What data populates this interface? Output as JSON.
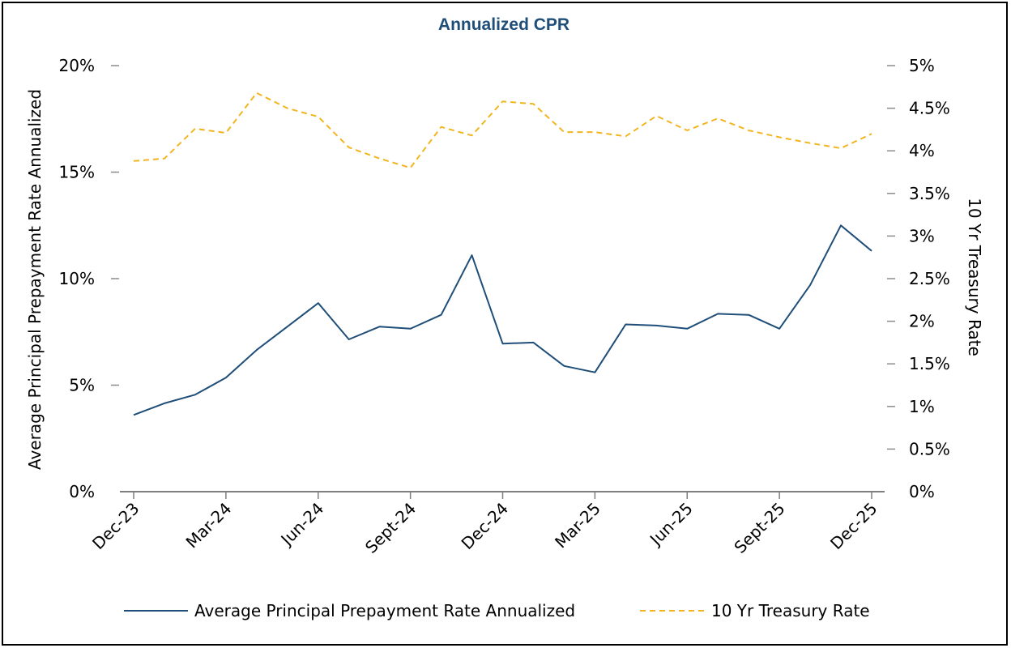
{
  "chart_data": {
    "type": "line",
    "title": "Annualized CPR",
    "ylabel": "Average Principal Prepayment Rate Annualized",
    "y2label": "10 Yr Treasury Rate",
    "ylim": [
      0,
      20
    ],
    "y2lim": [
      0,
      5
    ],
    "y_ticks": [
      "0%",
      "5%",
      "10%",
      "15%",
      "20%"
    ],
    "y2_ticks": [
      "0%",
      "0.5%",
      "1%",
      "1.5%",
      "2%",
      "2.5%",
      "3%",
      "3.5%",
      "4%",
      "4.5%",
      "5%"
    ],
    "x_tick_labels": [
      "Dec-23",
      "Mar-24",
      "Jun-24",
      "Sept-24",
      "Dec-24",
      "Mar-25",
      "Jun-25",
      "Sept-25",
      "Dec-25"
    ],
    "x_tick_every": 3,
    "point_count": 25,
    "legend_position": "bottom",
    "series": [
      {
        "name": "Average Principal Prepayment Rate Annualized",
        "axis": "left",
        "color": "#1f4e79",
        "style": "solid",
        "values": [
          3.6,
          4.15,
          4.55,
          5.35,
          6.65,
          7.75,
          8.85,
          7.15,
          7.75,
          7.65,
          8.3,
          11.1,
          6.95,
          7.0,
          5.9,
          5.6,
          7.85,
          7.8,
          7.65,
          8.35,
          8.3,
          7.65,
          9.7,
          12.5,
          11.3
        ]
      },
      {
        "name": "10 Yr Treasury Rate",
        "axis": "right",
        "color": "#f2b51f",
        "style": "dashed",
        "values": [
          3.88,
          3.91,
          4.26,
          4.21,
          4.68,
          4.5,
          4.4,
          4.04,
          3.91,
          3.8,
          4.28,
          4.18,
          4.58,
          4.55,
          4.22,
          4.22,
          4.17,
          4.41,
          4.24,
          4.38,
          4.24,
          4.16,
          4.09,
          4.03,
          4.2
        ]
      }
    ]
  }
}
